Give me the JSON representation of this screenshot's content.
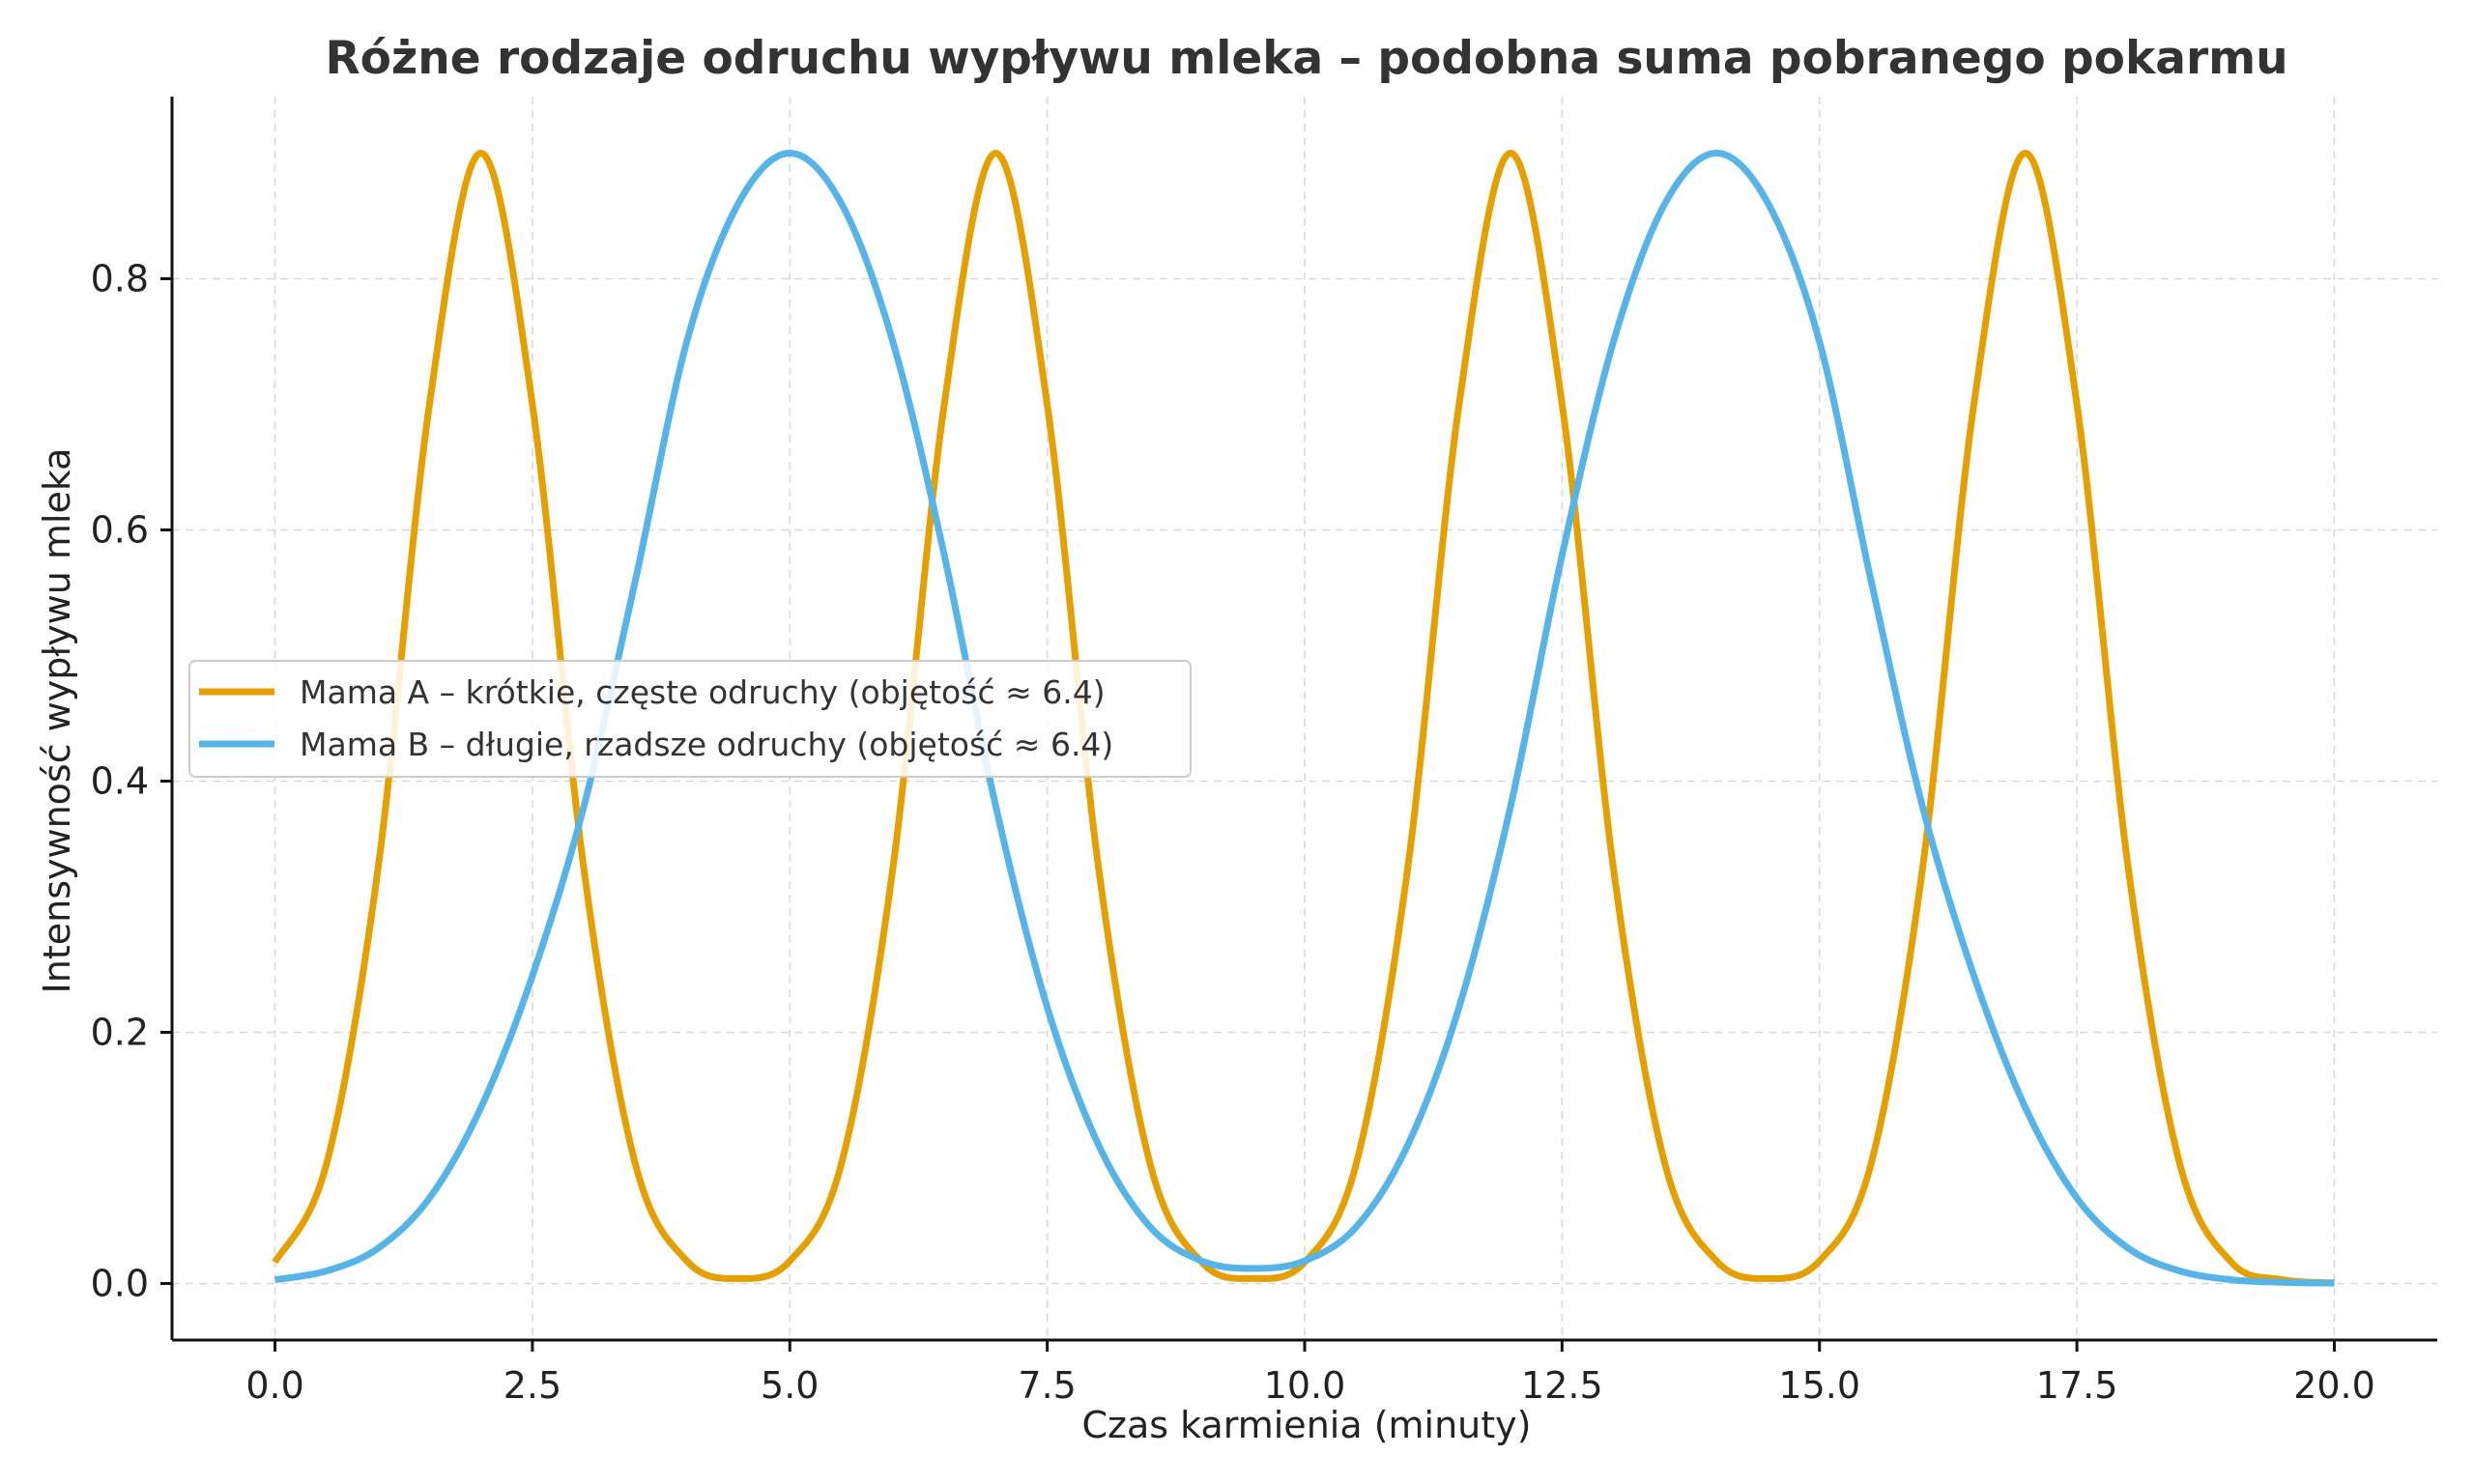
{
  "chart_data": {
    "type": "line",
    "title": "Różne rodzaje odruchu wypływu mleka – podobna suma pobranego pokarmu",
    "xlabel": "Czas karmienia (minuty)",
    "ylabel": "Intensywność wypływu mleka",
    "xlim": [
      -1.0,
      21.0
    ],
    "ylim": [
      -0.045,
      0.945
    ],
    "xticks": [
      0.0,
      2.5,
      5.0,
      7.5,
      10.0,
      12.5,
      15.0,
      17.5,
      20.0
    ],
    "xtick_labels": [
      "0.0",
      "2.5",
      "5.0",
      "7.5",
      "10.0",
      "12.5",
      "15.0",
      "17.5",
      "20.0"
    ],
    "yticks": [
      0.0,
      0.2,
      0.4,
      0.6,
      0.8
    ],
    "ytick_labels": [
      "0.0",
      "0.2",
      "0.4",
      "0.6",
      "0.8"
    ],
    "grid": true,
    "legend_position": "center-left",
    "series": [
      {
        "name": "Mama A – krótkie, częste odruchy (objętość ≈ 6.4)",
        "color": "#E69F00",
        "x": [
          0,
          0.5,
          1,
          1.5,
          2,
          2.5,
          3,
          3.5,
          4,
          4.5,
          5,
          5.5,
          6,
          6.5,
          7,
          7.5,
          8,
          8.5,
          9,
          9.5,
          10,
          10.5,
          11,
          11.5,
          12,
          12.5,
          13,
          13.5,
          14,
          14.5,
          15,
          15.5,
          16,
          16.5,
          17,
          17.5,
          18,
          18.5,
          19,
          19.5,
          20
        ],
        "values": [
          0.017,
          0.095,
          0.33,
          0.7,
          0.9,
          0.7,
          0.33,
          0.095,
          0.018,
          0.004,
          0.018,
          0.095,
          0.33,
          0.7,
          0.9,
          0.7,
          0.33,
          0.095,
          0.017,
          0.004,
          0.017,
          0.095,
          0.33,
          0.7,
          0.9,
          0.7,
          0.33,
          0.095,
          0.018,
          0.004,
          0.018,
          0.095,
          0.33,
          0.7,
          0.9,
          0.7,
          0.33,
          0.095,
          0.017,
          0.003,
          0.0005
        ]
      },
      {
        "name": "Mama B – długie, rzadsze odruchy (objętość ≈ 6.4)",
        "color": "#56B4E9",
        "x": [
          0,
          0.5,
          1,
          1.5,
          2,
          2.5,
          3,
          3.5,
          4,
          4.5,
          5,
          5.5,
          6,
          6.5,
          7,
          7.5,
          8,
          8.5,
          9,
          9.5,
          10,
          10.5,
          11,
          11.5,
          12,
          12.5,
          13,
          13.5,
          14,
          14.5,
          15,
          15.5,
          16,
          16.5,
          17,
          17.5,
          18,
          18.5,
          19,
          19.5,
          20
        ],
        "values": [
          0.003,
          0.01,
          0.028,
          0.068,
          0.14,
          0.245,
          0.38,
          0.56,
          0.75,
          0.86,
          0.9,
          0.86,
          0.75,
          0.58,
          0.38,
          0.22,
          0.11,
          0.045,
          0.018,
          0.012,
          0.018,
          0.045,
          0.11,
          0.22,
          0.38,
          0.58,
          0.75,
          0.86,
          0.9,
          0.86,
          0.75,
          0.56,
          0.38,
          0.245,
          0.14,
          0.068,
          0.028,
          0.01,
          0.003,
          0.001,
          0.0003
        ]
      }
    ]
  }
}
